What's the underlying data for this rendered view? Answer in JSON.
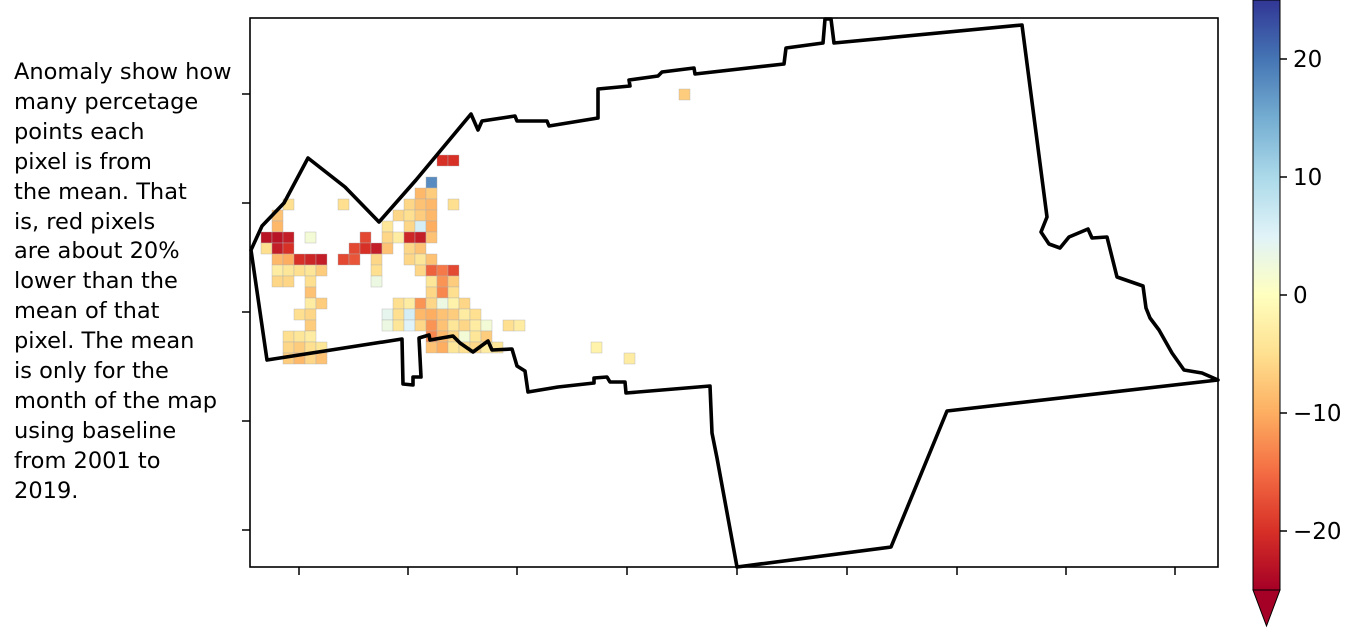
{
  "annotation": "Anomaly show how many percetage points each pixel is from the mean. That is, red pixels are about 20% lower than the mean of that pixel. The mean is only for the month of the map using baseline from 2001 to 2019.",
  "colorbar": {
    "range": [
      -25,
      25
    ],
    "ticks": [
      20,
      10,
      0,
      -10,
      -20
    ],
    "tick_labels": [
      "20",
      "10",
      "0",
      "−10",
      "−20"
    ],
    "extend": "min",
    "colormap": "RdYlBu",
    "stops": [
      "#a50026",
      "#d73027",
      "#f46d43",
      "#fdae61",
      "#fee090",
      "#ffffbf",
      "#e0f3f8",
      "#abd9e9",
      "#74add1",
      "#4575b4",
      "#313695"
    ]
  },
  "map": {
    "boundary_color": "#000000",
    "background": "#ffffff"
  }
}
